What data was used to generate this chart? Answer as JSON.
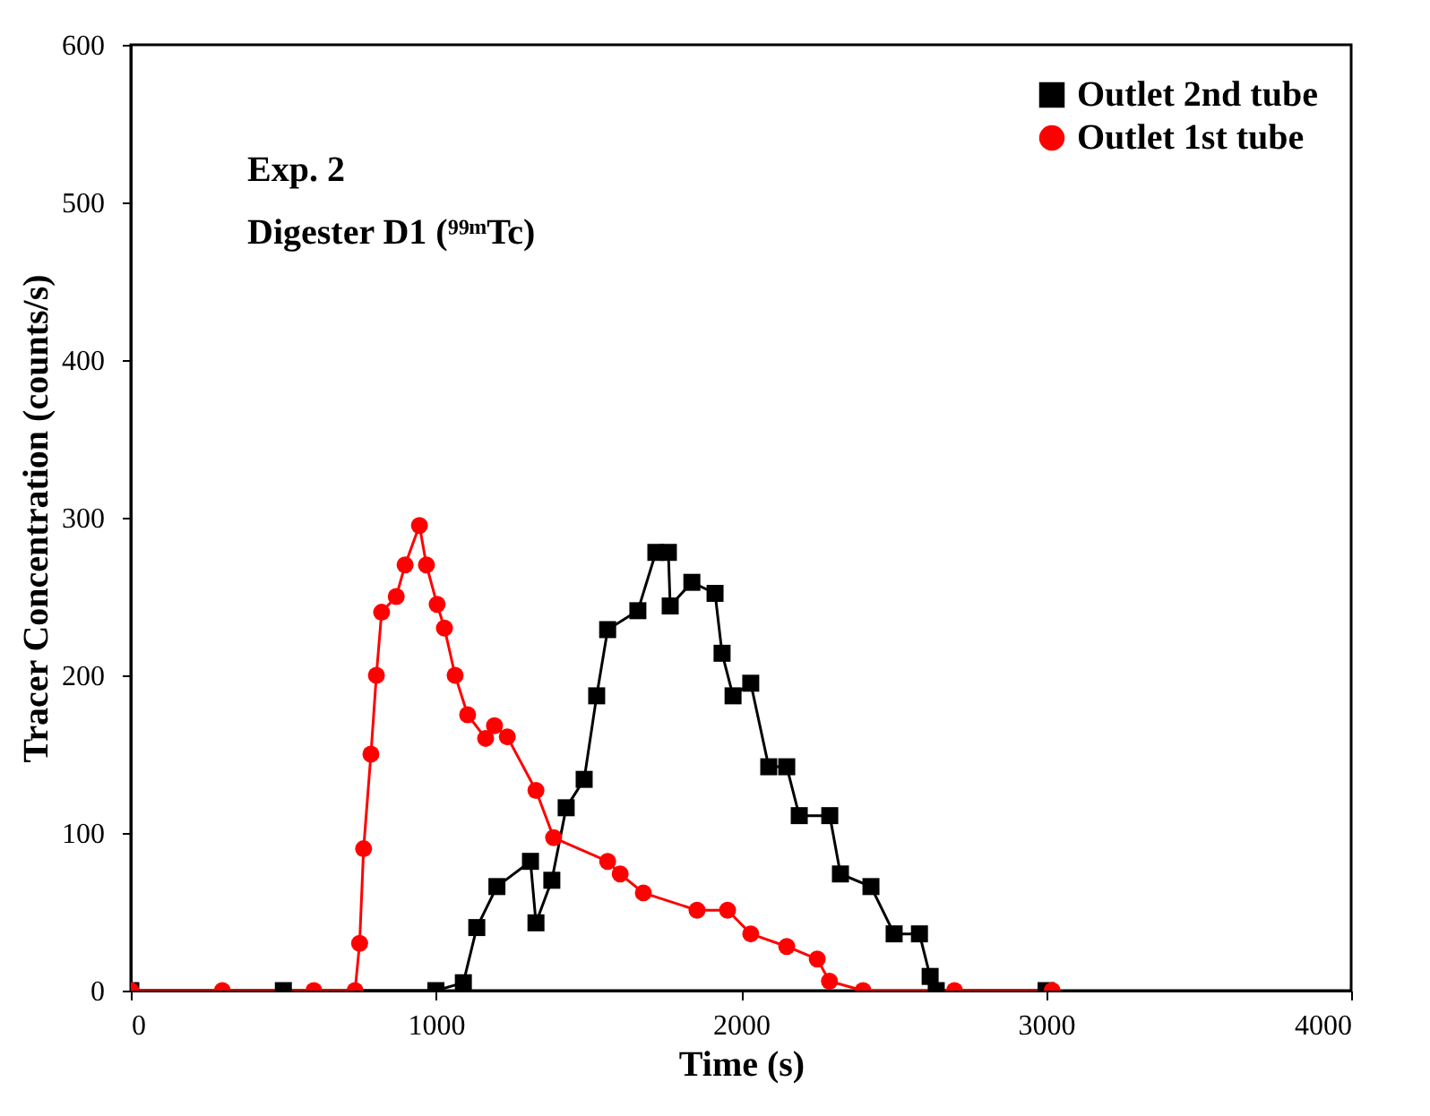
{
  "chart_data": {
    "type": "line",
    "xlabel": "Time (s)",
    "ylabel": "Tracer Concentration (counts/s)",
    "xlim": [
      0,
      4000
    ],
    "xticks": [
      0,
      1000,
      2000,
      3000,
      4000
    ],
    "ylim": [
      0,
      600
    ],
    "yticks": [
      0,
      100,
      200,
      300,
      400,
      500,
      600
    ],
    "grid": false,
    "legend": "top right",
    "annotations": [
      "Exp. 2",
      "Digester D1 (⁹⁹ᵐTc)"
    ],
    "series": [
      {
        "name": "Outlet 2nd tube",
        "color": "#000000",
        "marker": "square",
        "x": [
          0,
          500,
          1000,
          1090,
          1134,
          1200,
          1310,
          1328,
          1380,
          1427,
          1486,
          1527,
          1563,
          1662,
          1721,
          1762,
          1768,
          1839,
          1915,
          1938,
          1974,
          2032,
          2091,
          2150,
          2191,
          2291,
          2326,
          2426,
          2502,
          2585,
          2620,
          2640,
          3000
        ],
        "values": [
          0,
          0,
          0,
          5,
          40,
          66,
          82,
          43,
          70,
          116,
          134,
          187,
          229,
          241,
          278,
          278,
          244,
          259,
          252,
          214,
          187,
          195,
          142,
          142,
          111,
          111,
          74,
          66,
          36,
          36,
          9,
          0,
          0
        ]
      },
      {
        "name": "Outlet 1st tube",
        "color": "#ff0000",
        "marker": "circle",
        "x": [
          0,
          300,
          600,
          735,
          750,
          763,
          787,
          805,
          822,
          870,
          899,
          946,
          969,
          1004,
          1028,
          1063,
          1104,
          1163,
          1192,
          1234,
          1328,
          1386,
          1563,
          1604,
          1680,
          1856,
          1956,
          2032,
          2150,
          2250,
          2290,
          2400,
          2700,
          3020
        ],
        "values": [
          0,
          0,
          0,
          0,
          30,
          90,
          150,
          200,
          240,
          250,
          270,
          295,
          270,
          245,
          230,
          200,
          175,
          160,
          168,
          161,
          127,
          97,
          82,
          74,
          62,
          51,
          51,
          36,
          28,
          20,
          6,
          0,
          0,
          0
        ]
      }
    ]
  }
}
